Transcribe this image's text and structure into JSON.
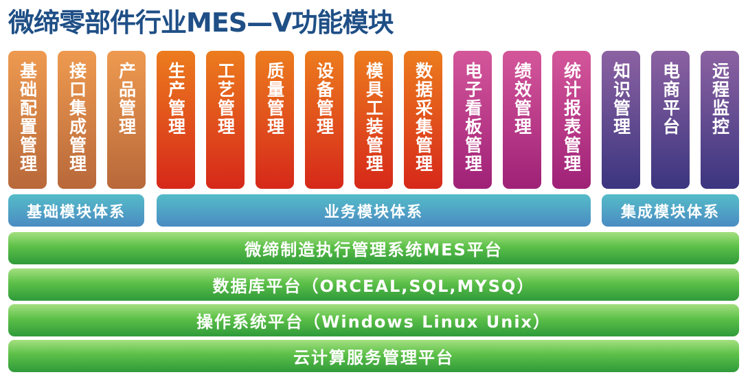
{
  "title": "微缔零部件行业MES—V功能模块",
  "colors": {
    "title": "#1f4f86",
    "base": "#e08a48",
    "business": "#e04a1c",
    "business_display": "#c03a88",
    "integration": "#5a4890",
    "band": "#50a4c4",
    "platform": "#4cb044"
  },
  "modules": [
    {
      "label": "基础配置管理",
      "group": "base"
    },
    {
      "label": "接口集成管理",
      "group": "base"
    },
    {
      "label": "产品管理",
      "group": "base"
    },
    {
      "label": "生产管理",
      "group": "biz"
    },
    {
      "label": "工艺管理",
      "group": "biz"
    },
    {
      "label": "质量管理",
      "group": "biz"
    },
    {
      "label": "设备管理",
      "group": "biz"
    },
    {
      "label": "模具工装管理",
      "group": "biz"
    },
    {
      "label": "数据采集管理",
      "group": "biz"
    },
    {
      "label": "电子看板管理",
      "group": "biz2"
    },
    {
      "label": "绩效管理",
      "group": "biz2"
    },
    {
      "label": "统计报表管理",
      "group": "biz2"
    },
    {
      "label": "知识管理",
      "group": "int"
    },
    {
      "label": "电商平台",
      "group": "int"
    },
    {
      "label": "远程监控",
      "group": "int"
    }
  ],
  "systems": {
    "base": "基础模块体系",
    "business": "业务模块体系",
    "integration": "集成模块体系"
  },
  "layers": [
    "微缔制造执行管理系统MES平台",
    "数据库平台（ORCEAL,SQL,MYSQ）",
    "操作系统平台（Windows Linux Unix）",
    "云计算服务管理平台"
  ]
}
